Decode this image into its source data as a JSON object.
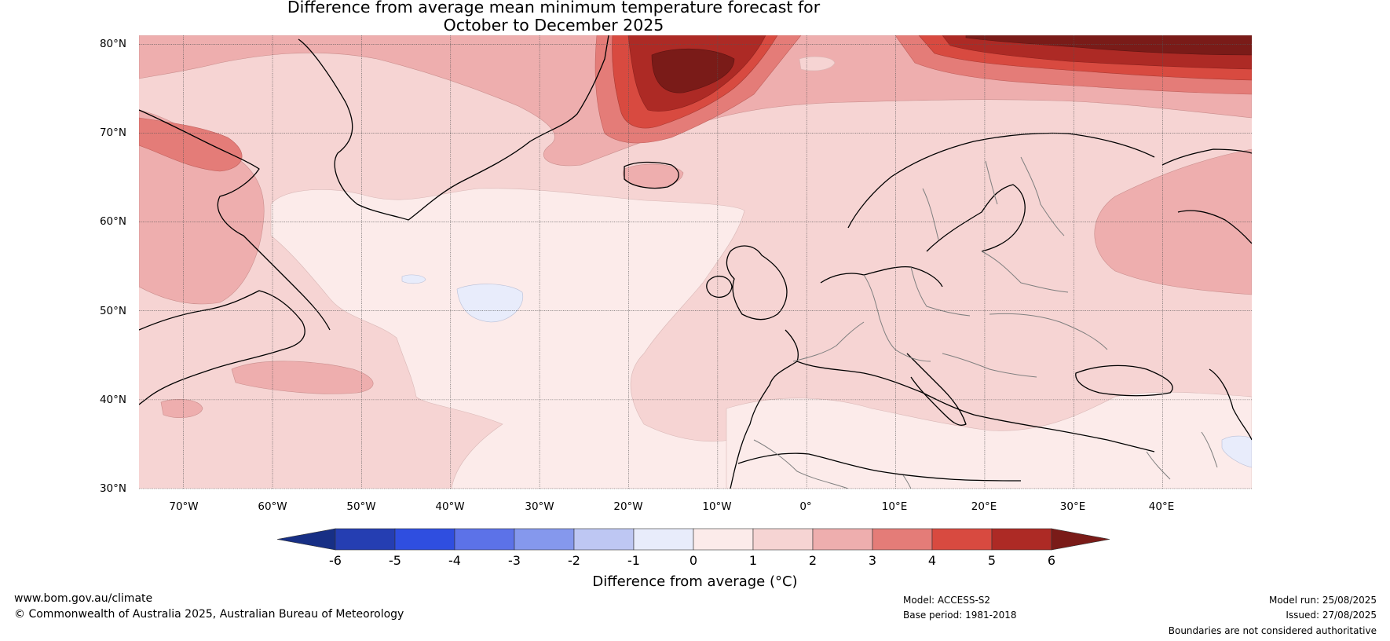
{
  "title": {
    "line1": "Difference from average mean minimum temperature forecast for",
    "line2": "October to December 2025"
  },
  "latitude_labels": [
    "80°N",
    "70°N",
    "60°N",
    "50°N",
    "40°N",
    "30°N"
  ],
  "longitude_labels": [
    "70°W",
    "60°W",
    "50°W",
    "40°W",
    "30°W",
    "20°W",
    "10°W",
    "0°",
    "10°E",
    "20°E",
    "30°E",
    "40°E"
  ],
  "map_extent": {
    "lon_min": -75,
    "lon_max": 50,
    "lat_min": 30,
    "lat_max": 81
  },
  "colorbar": {
    "ticks": [
      "-6",
      "-5",
      "-4",
      "-3",
      "-2",
      "-1",
      "0",
      "1",
      "2",
      "3",
      "4",
      "5",
      "6"
    ],
    "colors": [
      "#172f85",
      "#253eb2",
      "#2f4ee0",
      "#5c72e8",
      "#8598ed",
      "#bec7f3",
      "#e8ecfb",
      "#fcebea",
      "#f6d4d3",
      "#eeaeae",
      "#e47c78",
      "#d84a40",
      "#ad2a25",
      "#7a1b18"
    ],
    "label": "Difference from average (°C)"
  },
  "footer": {
    "website": "www.bom.gov.au/climate",
    "copyright": "© Commonwealth of Australia 2025, Australian Bureau of Meteorology",
    "model": "Model: ACCESS-S2",
    "base_period": "Base period: 1981-2018",
    "model_run": "Model run: 25/08/2025",
    "issued": "Issued: 27/08/2025",
    "disclaimer": "Boundaries are not considered authoritative"
  }
}
